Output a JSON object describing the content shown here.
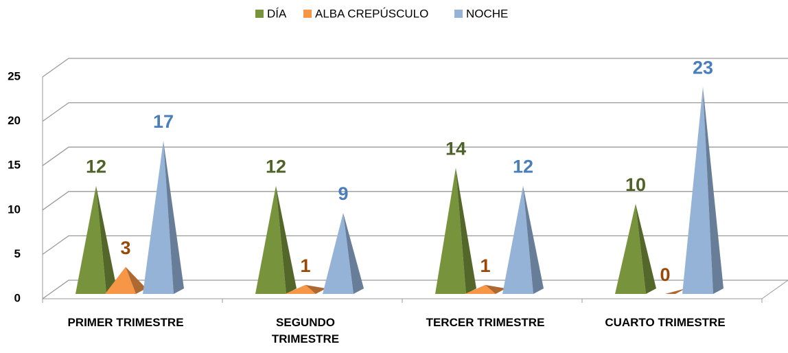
{
  "chart_data": {
    "type": "pyramid",
    "categories": [
      "PRIMER TRIMESTRE",
      "SEGUNDO TRIMESTRE",
      "TERCER TRIMESTRE",
      "CUARTO TRIMESTRE"
    ],
    "series": [
      {
        "name": "DÍA",
        "color": "#77933c",
        "label_color": "#4f6228",
        "values": [
          12,
          12,
          14,
          10
        ]
      },
      {
        "name": "ALBA CREPÚSCULO",
        "color": "#f79646",
        "label_color": "#984807",
        "values": [
          3,
          1,
          1,
          0
        ]
      },
      {
        "name": "NOCHE",
        "color": "#95b3d7",
        "label_color": "#4a7ebb",
        "values": [
          17,
          9,
          12,
          23
        ]
      }
    ],
    "ylim": [
      0,
      25
    ],
    "yticks": [
      0,
      5,
      10,
      15,
      20,
      25
    ],
    "grid": true,
    "legend": "top"
  }
}
